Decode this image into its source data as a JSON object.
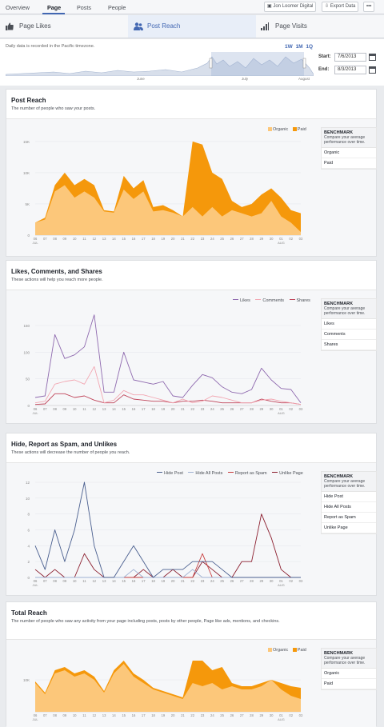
{
  "nav": {
    "tabs": [
      "Overview",
      "Page",
      "Posts",
      "People"
    ],
    "account": "Jon Loomer Digital",
    "export": "Export Data",
    "more": "•••"
  },
  "subnav": {
    "tabs": [
      "Page Likes",
      "Post Reach",
      "Page Visits"
    ]
  },
  "timeline": {
    "note": "Daily data is recorded in the Pacific timezone.",
    "ranges": [
      "1W",
      "1M",
      "1Q"
    ],
    "start_label": "Start:",
    "start": "7/6/2013",
    "end_label": "End:",
    "end": "8/3/2013",
    "months": [
      "June",
      "July",
      "August"
    ]
  },
  "days": [
    "06",
    "07",
    "08",
    "09",
    "10",
    "11",
    "12",
    "13",
    "14",
    "15",
    "16",
    "17",
    "18",
    "19",
    "20",
    "21",
    "22",
    "23",
    "24",
    "25",
    "26",
    "27",
    "28",
    "29",
    "30",
    "01",
    "02",
    "03"
  ],
  "month_labels": {
    "start": "JUL",
    "end": "AUG"
  },
  "benchmark": {
    "title": "BENCHMARK",
    "subtitle": "Compare your average performance over time."
  },
  "post_reach": {
    "title": "Post Reach",
    "subtitle": "The number of people who saw your posts.",
    "legend": [
      "Organic",
      "Paid"
    ],
    "bench_items": [
      "Organic",
      "Paid"
    ],
    "chart_data": {
      "type": "area",
      "yticks": [
        "15K",
        "10K",
        "5K",
        "0"
      ],
      "ylim": [
        0,
        15500
      ],
      "series": [
        {
          "name": "Organic",
          "values": [
            2000,
            2500,
            7000,
            8000,
            6000,
            7000,
            6000,
            3800,
            3600,
            7300,
            5800,
            7000,
            3800,
            4000,
            3600,
            3000,
            4500,
            3000,
            4500,
            3000,
            4000,
            3500,
            3000,
            3500,
            5500,
            3000,
            2000,
            500
          ]
        },
        {
          "name": "Paid",
          "values": [
            2000,
            2800,
            8000,
            10000,
            8000,
            9000,
            8000,
            4000,
            3800,
            9500,
            7500,
            8800,
            4500,
            4800,
            4000,
            3000,
            15000,
            14500,
            10000,
            9000,
            5500,
            4500,
            5000,
            6500,
            7500,
            6000,
            4000,
            3500
          ]
        }
      ]
    }
  },
  "lcs": {
    "title": "Likes, Comments, and Shares",
    "subtitle": "These actions will help you reach more people.",
    "legend": [
      "Likes",
      "Comments",
      "Shares"
    ],
    "bench_items": [
      "Likes",
      "Comments",
      "Shares"
    ],
    "chart_data": {
      "type": "line",
      "yticks": [
        "150",
        "100",
        "50",
        "0"
      ],
      "ylim": [
        0,
        180
      ],
      "series": [
        {
          "name": "Likes",
          "values": [
            15,
            18,
            133,
            88,
            95,
            110,
            170,
            25,
            25,
            100,
            48,
            44,
            40,
            45,
            18,
            15,
            38,
            58,
            52,
            35,
            25,
            22,
            30,
            70,
            48,
            32,
            30,
            5
          ]
        },
        {
          "name": "Comments",
          "values": [
            5,
            8,
            40,
            45,
            48,
            40,
            73,
            5,
            10,
            28,
            20,
            20,
            15,
            10,
            5,
            12,
            5,
            8,
            18,
            15,
            10,
            5,
            5,
            10,
            12,
            8,
            5,
            2
          ]
        },
        {
          "name": "Shares",
          "values": [
            2,
            3,
            22,
            22,
            15,
            18,
            10,
            5,
            5,
            20,
            12,
            10,
            8,
            8,
            5,
            8,
            8,
            10,
            8,
            5,
            5,
            5,
            5,
            12,
            8,
            5,
            5,
            2
          ]
        }
      ]
    }
  },
  "hide": {
    "title": "Hide, Report as Spam, and Unlikes",
    "subtitle": "These actions will decrease the number of people you reach.",
    "legend": [
      "Hide Post",
      "Hide All Posts",
      "Report as Spam",
      "Unlike Page"
    ],
    "bench_items": [
      "Hide Post",
      "Hide All Posts",
      "Report as Spam",
      "Unlike Page"
    ],
    "chart_data": {
      "type": "line",
      "yticks": [
        "12",
        "10",
        "8",
        "6",
        "4",
        "2",
        "0"
      ],
      "ylim": [
        0,
        12
      ],
      "series": [
        {
          "name": "Hide Post",
          "values": [
            4,
            1,
            6,
            2,
            6,
            12,
            4,
            0,
            0,
            2,
            4,
            2,
            0,
            1,
            1,
            1,
            2,
            2,
            2,
            1,
            0,
            0,
            0,
            0,
            0,
            0,
            0,
            0
          ]
        },
        {
          "name": "Hide All Posts",
          "values": [
            0,
            0,
            0,
            0,
            0,
            0,
            0,
            0,
            0,
            0,
            1,
            0,
            0,
            0,
            0,
            0,
            1,
            0,
            0,
            0,
            0,
            0,
            0,
            0,
            0,
            0,
            0,
            0
          ]
        },
        {
          "name": "Report as Spam",
          "values": [
            0,
            0,
            0,
            0,
            0,
            0,
            0,
            0,
            0,
            0,
            0,
            0,
            0,
            0,
            0,
            0,
            0,
            3,
            0,
            0,
            0,
            0,
            0,
            0,
            0,
            0,
            0,
            0
          ]
        },
        {
          "name": "Unlike Page",
          "values": [
            1,
            0,
            1,
            0,
            0,
            3,
            1,
            0,
            0,
            0,
            0,
            1,
            0,
            0,
            1,
            0,
            0,
            2,
            1,
            0,
            0,
            2,
            2,
            8,
            5,
            1,
            0,
            0
          ]
        }
      ]
    }
  },
  "total_reach": {
    "title": "Total Reach",
    "subtitle": "The number of people who saw any activity from your page including posts, posts by other people, Page like ads, mentions, and checkins.",
    "legend": [
      "Organic",
      "Paid"
    ],
    "bench_items": [
      "Organic",
      "Paid"
    ],
    "chart_data": {
      "type": "area",
      "yticks": [
        "10K"
      ],
      "ylim": [
        0,
        20000
      ],
      "series": [
        {
          "name": "Organic",
          "values": [
            9000,
            5500,
            12000,
            13000,
            11000,
            12000,
            10000,
            6000,
            12000,
            15000,
            11000,
            9000,
            7000,
            6000,
            5000,
            4000,
            9000,
            8000,
            9000,
            7000,
            8000,
            7000,
            7000,
            8000,
            10000,
            7000,
            5000,
            4000
          ]
        },
        {
          "name": "Paid",
          "values": [
            9500,
            6000,
            13000,
            14000,
            12000,
            13000,
            11000,
            6500,
            13000,
            16000,
            12000,
            10000,
            7500,
            6500,
            5500,
            4500,
            16000,
            16000,
            13000,
            14000,
            9000,
            8000,
            8000,
            9000,
            10000,
            9000,
            8000,
            7500
          ]
        }
      ]
    }
  }
}
